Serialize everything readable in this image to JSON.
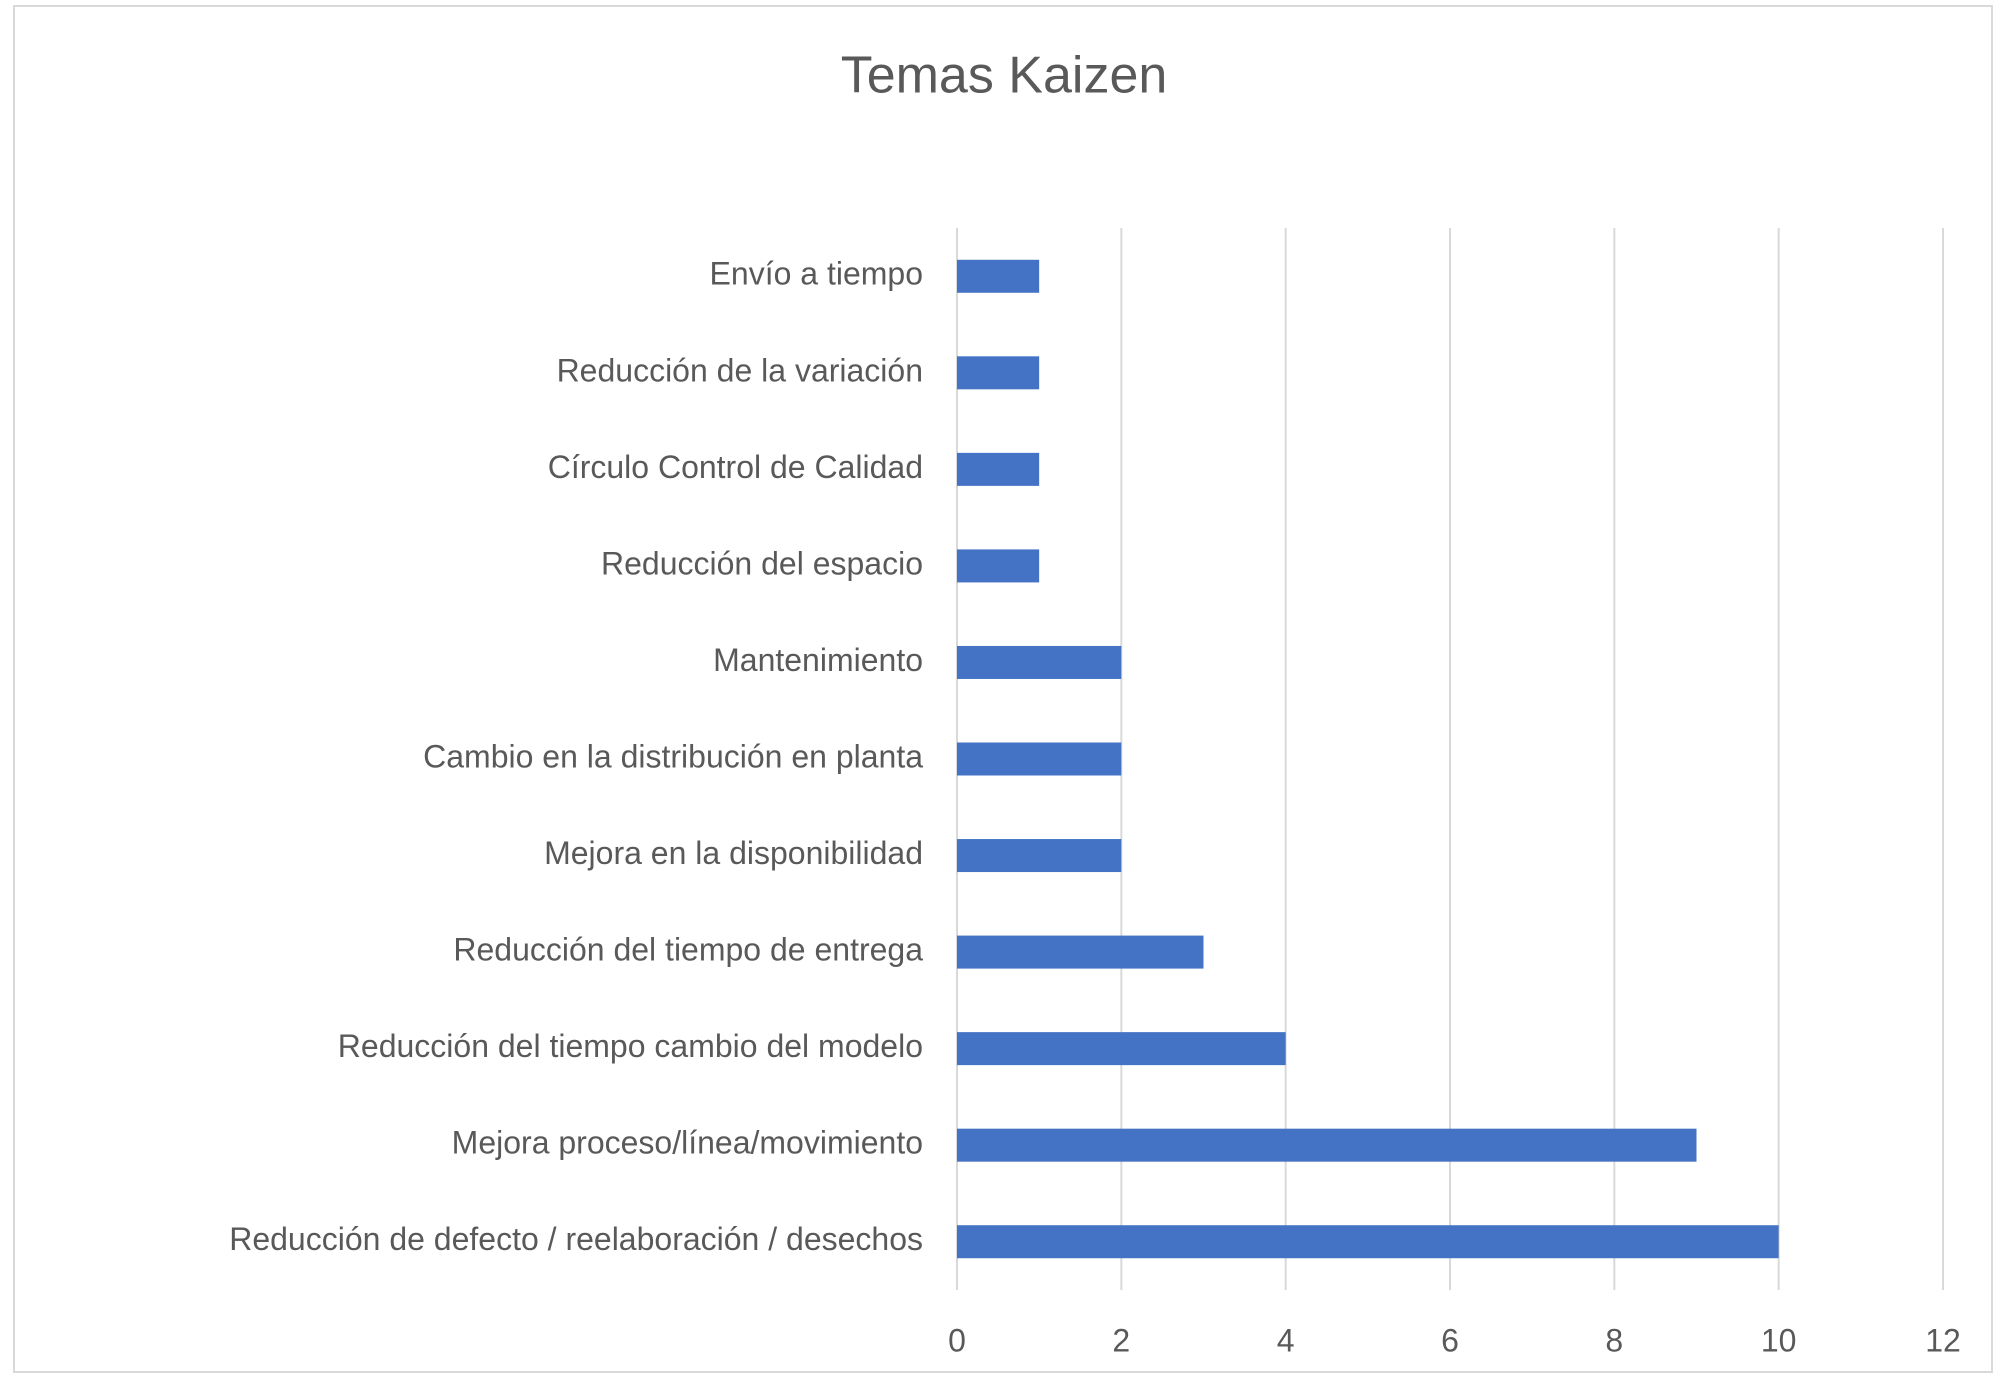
{
  "chart_data": {
    "type": "barh",
    "title": "Temas Kaizen",
    "categories": [
      "Envío a tiempo",
      "Reducción de la variación",
      "Círculo Control de Calidad",
      "Reducción del espacio",
      "Mantenimiento",
      "Cambio en la distribución en planta",
      "Mejora en la disponibilidad",
      "Reducción del tiempo de entrega",
      "Reducción del tiempo cambio del modelo",
      "Mejora proceso/línea/movimiento",
      "Reducción de defecto / reelaboración / desechos"
    ],
    "values": [
      1,
      1,
      1,
      1,
      2,
      2,
      2,
      3,
      4,
      9,
      10
    ],
    "color": "#4472c4",
    "xlim": [
      0,
      12
    ],
    "xticks": [
      0,
      2,
      4,
      6,
      8,
      10,
      12
    ],
    "grid": true
  }
}
